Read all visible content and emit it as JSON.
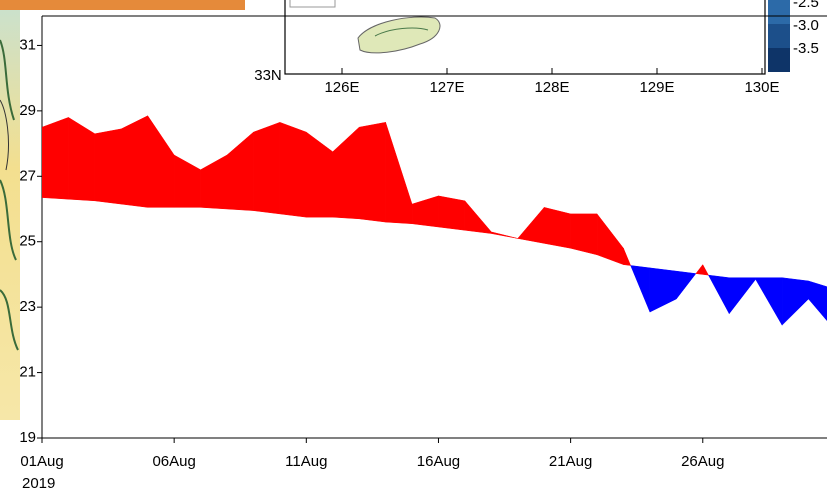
{
  "chart_data": {
    "type": "difference-area",
    "x": [
      1,
      2,
      3,
      4,
      5,
      6,
      7,
      8,
      9,
      10,
      11,
      12,
      13,
      14,
      15,
      16,
      17,
      18,
      19,
      20,
      21,
      22,
      23,
      24,
      25,
      26,
      27,
      28,
      29,
      30,
      31
    ],
    "series": [
      {
        "color": "#ff0000",
        "values": [
          28.5,
          28.8,
          28.3,
          28.45,
          28.85,
          27.65,
          27.2,
          27.65,
          28.35,
          28.65,
          28.35,
          27.75,
          28.5,
          28.65,
          26.15,
          26.4,
          26.25,
          25.3,
          25.1,
          26.05,
          25.85,
          25.85,
          24.8,
          22.85,
          23.25,
          24.3,
          22.8,
          23.85,
          22.45,
          23.25,
          22.3
        ]
      },
      {
        "color": "#0000ff",
        "values": [
          26.35,
          26.3,
          26.25,
          26.15,
          26.05,
          26.05,
          26.05,
          26.0,
          25.95,
          25.85,
          25.75,
          25.75,
          25.7,
          25.6,
          25.55,
          25.45,
          25.35,
          25.25,
          25.1,
          24.95,
          24.8,
          24.6,
          24.3,
          24.2,
          24.1,
          24.0,
          23.9,
          23.9,
          23.9,
          23.8,
          23.55
        ]
      }
    ],
    "xlim": [
      1,
      30.7
    ],
    "xticks": [
      {
        "value": 1,
        "label": "01Aug"
      },
      {
        "value": 6,
        "label": "06Aug"
      },
      {
        "value": 11,
        "label": "11Aug"
      },
      {
        "value": 16,
        "label": "16Aug"
      },
      {
        "value": 21,
        "label": "21Aug"
      },
      {
        "value": 26,
        "label": "26Aug"
      }
    ],
    "year_label": "2019",
    "ylim": [
      19,
      31.9
    ],
    "yticks": [
      19,
      21,
      23,
      25,
      27,
      29,
      31
    ]
  },
  "inset": {
    "lat_label": "33N",
    "lon_labels": [
      "126E",
      "127E",
      "128E",
      "129E",
      "130E"
    ],
    "colorbar_labels": [
      "-2.5",
      "-3.0",
      "-3.5"
    ]
  }
}
